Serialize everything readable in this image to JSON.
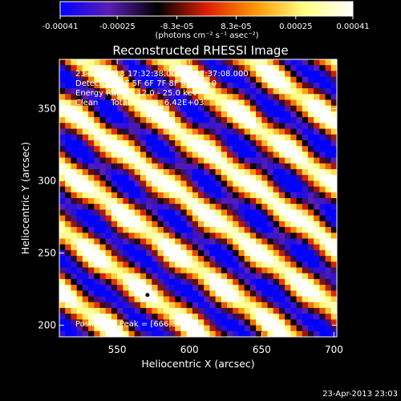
{
  "chart_data": {
    "type": "heatmap",
    "title": "Reconstructed RHESSI Image",
    "xlabel": "Heliocentric X (arcsec)",
    "ylabel": "Heliocentric Y (arcsec)",
    "xlim": [
      510,
      702
    ],
    "ylim": [
      192,
      384
    ],
    "x_ticks": [
      "550",
      "600",
      "650",
      "700"
    ],
    "x_tick_values": [
      550,
      600,
      650,
      700
    ],
    "y_ticks": [
      "200",
      "250",
      "300",
      "350"
    ],
    "y_tick_values": [
      200,
      250,
      300,
      350
    ],
    "colorbar": {
      "min": -0.00041,
      "max": 0.00041,
      "ticks": [
        "-0.00041",
        "-0.00025",
        "-8.3e-05",
        "8.3e-05",
        "0.00025",
        "0.00041"
      ],
      "tick_values": [
        -0.00041,
        -0.00025,
        -8.3e-05,
        8.3e-05,
        0.00025,
        0.00041
      ],
      "unit_label": "(photons cm⁻² s⁻¹ asec⁻²)",
      "colormap": [
        "#0000ff",
        "#5c1eb4",
        "#000000",
        "#dc1e00",
        "#ff9600",
        "#ffff80",
        "#ffffff"
      ]
    },
    "annotations": [
      "23-Apr-2013 17:32:38.000 to 17:37:08.000",
      "Detectors: 3F 5F 6F 7F 8F 9F, Att_0",
      "Energy Range: 12.0 - 25.0 keV",
      "Clean     Total counts: 6.42E+03"
    ],
    "peak_label": "Position of Peak = [666,378]",
    "marker": {
      "x": 571,
      "y": 221
    },
    "pattern": "diagonal fringe bands running from upper-left to lower-right, alternating bright yellow/white ridges and blue/purple troughs"
  },
  "footer_timestamp": "23-Apr-2013 23:03"
}
